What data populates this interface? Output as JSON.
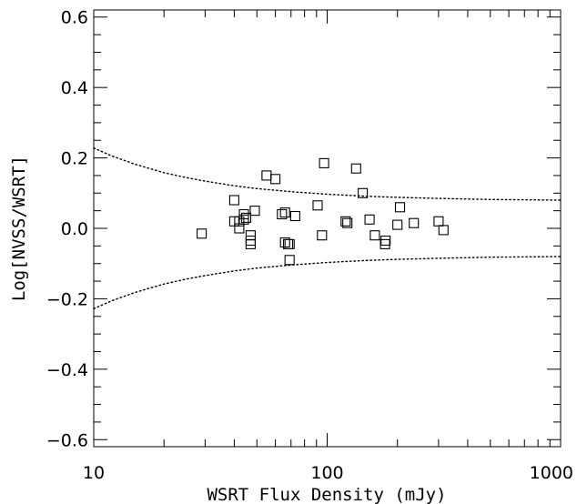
{
  "chart_data": {
    "type": "scatter",
    "xlabel": "WSRT Flux Density (mJy)",
    "ylabel": "Log[NVSS/WSRT]",
    "xscale": "log",
    "xlim": [
      10,
      1000
    ],
    "ylim": [
      -0.62,
      0.62
    ],
    "x_ticks": [
      {
        "value": 10,
        "label": "10"
      },
      {
        "value": 100,
        "label": "100"
      },
      {
        "value": 1000,
        "label": "1000"
      }
    ],
    "y_ticks": [
      {
        "value": 0.6,
        "label": "0.6"
      },
      {
        "value": 0.4,
        "label": "0.4"
      },
      {
        "value": 0.2,
        "label": "0.2"
      },
      {
        "value": 0.0,
        "label": "0.0"
      },
      {
        "value": -0.2,
        "label": "−0.2"
      },
      {
        "value": -0.4,
        "label": "−0.4"
      },
      {
        "value": -0.6,
        "label": "−0.6"
      }
    ],
    "grid": false,
    "marker": "open-square",
    "points": [
      {
        "x": 29,
        "y": -0.015
      },
      {
        "x": 40,
        "y": 0.08
      },
      {
        "x": 40,
        "y": 0.02
      },
      {
        "x": 42,
        "y": 0.02
      },
      {
        "x": 42,
        "y": 0.0
      },
      {
        "x": 44,
        "y": 0.025
      },
      {
        "x": 44,
        "y": 0.04
      },
      {
        "x": 45,
        "y": 0.03
      },
      {
        "x": 47,
        "y": -0.02
      },
      {
        "x": 47,
        "y": -0.035
      },
      {
        "x": 47,
        "y": -0.045
      },
      {
        "x": 49,
        "y": 0.05
      },
      {
        "x": 55,
        "y": 0.15
      },
      {
        "x": 60,
        "y": 0.14
      },
      {
        "x": 64,
        "y": 0.04
      },
      {
        "x": 66,
        "y": 0.045
      },
      {
        "x": 66,
        "y": -0.04
      },
      {
        "x": 68,
        "y": -0.045
      },
      {
        "x": 69,
        "y": -0.045
      },
      {
        "x": 69,
        "y": -0.09
      },
      {
        "x": 73,
        "y": 0.035
      },
      {
        "x": 91,
        "y": 0.065
      },
      {
        "x": 95,
        "y": -0.02
      },
      {
        "x": 97,
        "y": 0.185
      },
      {
        "x": 120,
        "y": 0.02
      },
      {
        "x": 122,
        "y": 0.015
      },
      {
        "x": 133,
        "y": 0.17
      },
      {
        "x": 142,
        "y": 0.1
      },
      {
        "x": 152,
        "y": 0.025
      },
      {
        "x": 160,
        "y": -0.02
      },
      {
        "x": 177,
        "y": -0.045
      },
      {
        "x": 178,
        "y": -0.035
      },
      {
        "x": 200,
        "y": 0.01
      },
      {
        "x": 205,
        "y": 0.06
      },
      {
        "x": 235,
        "y": 0.015
      },
      {
        "x": 300,
        "y": 0.02
      },
      {
        "x": 315,
        "y": -0.005
      }
    ],
    "curves": [
      {
        "style": "dotted",
        "points": [
          [
            10,
            0.228
          ],
          [
            12,
            0.205
          ],
          [
            15,
            0.182
          ],
          [
            20,
            0.158
          ],
          [
            25,
            0.144
          ],
          [
            30,
            0.134
          ],
          [
            40,
            0.121
          ],
          [
            50,
            0.113
          ],
          [
            70,
            0.104
          ],
          [
            100,
            0.097
          ],
          [
            150,
            0.091
          ],
          [
            200,
            0.088
          ],
          [
            300,
            0.085
          ],
          [
            500,
            0.082
          ],
          [
            700,
            0.081
          ],
          [
            1000,
            0.08
          ]
        ]
      },
      {
        "style": "dotted",
        "points": [
          [
            10,
            -0.228
          ],
          [
            12,
            -0.205
          ],
          [
            15,
            -0.182
          ],
          [
            20,
            -0.158
          ],
          [
            25,
            -0.144
          ],
          [
            30,
            -0.134
          ],
          [
            40,
            -0.121
          ],
          [
            50,
            -0.113
          ],
          [
            70,
            -0.104
          ],
          [
            100,
            -0.097
          ],
          [
            150,
            -0.091
          ],
          [
            200,
            -0.088
          ],
          [
            300,
            -0.085
          ],
          [
            500,
            -0.082
          ],
          [
            700,
            -0.081
          ],
          [
            1000,
            -0.08
          ]
        ]
      }
    ]
  }
}
